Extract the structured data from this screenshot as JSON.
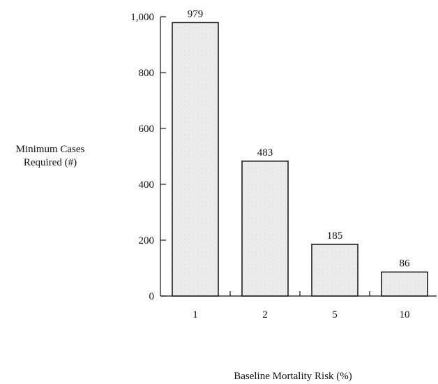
{
  "chart_data": {
    "type": "bar",
    "categories": [
      "1",
      "2",
      "5",
      "10"
    ],
    "values": [
      979,
      483,
      185,
      86
    ],
    "data_labels": [
      "979",
      "483",
      "185",
      "86"
    ],
    "title": "",
    "xlabel": "Baseline Mortality Risk (%)",
    "ylabel_lines": [
      "Minimum Cases",
      "Required (#)"
    ],
    "ylim": [
      0,
      1000
    ],
    "yticks": [
      0,
      200,
      400,
      600,
      800,
      1000
    ],
    "ytick_labels": [
      "0",
      "200",
      "400",
      "600",
      "800",
      "1,000"
    ],
    "grid": false,
    "legend": "none",
    "bar_fill": "#ececec",
    "bar_stroke": "#111111"
  }
}
